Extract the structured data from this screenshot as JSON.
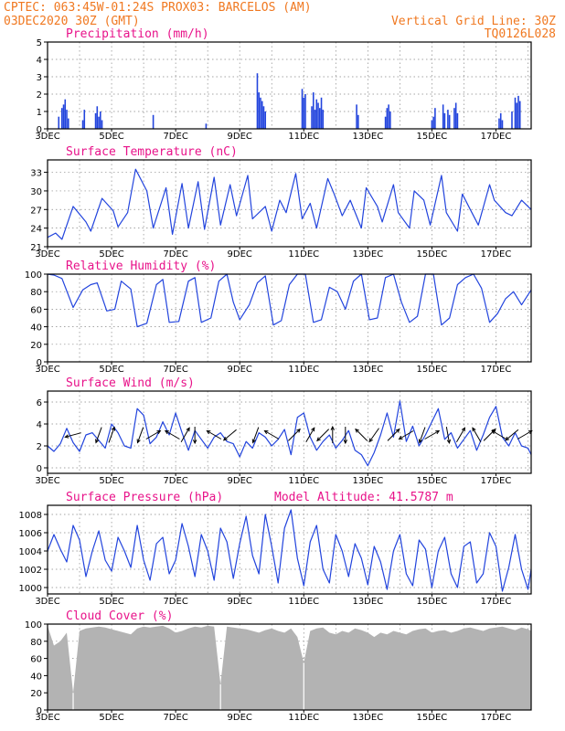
{
  "header": {
    "line1": "CPTEC:   063:45W-01:24S   PROX03: BARCELOS (AM)",
    "line2_left": "03DEC2020 30Z (GMT)",
    "line2_right": "Vertical Grid Line: 30Z",
    "line3_right": "TQ0126L028"
  },
  "colors": {
    "header": "#f07820",
    "title": "#e8138a",
    "series": "#2244dd",
    "bars": "#2244dd",
    "cloud": "#b3b3b3"
  },
  "chart_data": [
    {
      "type": "bar",
      "title": "Precipitation (mm/h)",
      "ylim": [
        0,
        5
      ],
      "yticks": [
        0,
        1,
        2,
        3,
        4,
        5
      ],
      "xticks": [
        "3DEC",
        "5DEC",
        "7DEC",
        "9DEC",
        "11DEC",
        "13DEC",
        "15DEC",
        "17DEC"
      ],
      "x_range_days": [
        3,
        18.1
      ],
      "bars": [
        [
          3.35,
          0.7
        ],
        [
          3.45,
          1.2
        ],
        [
          3.5,
          1.4
        ],
        [
          3.55,
          1.7
        ],
        [
          3.6,
          1.1
        ],
        [
          3.65,
          0.6
        ],
        [
          4.1,
          0.5
        ],
        [
          4.15,
          1.1
        ],
        [
          4.5,
          0.9
        ],
        [
          4.55,
          1.3
        ],
        [
          4.6,
          0.7
        ],
        [
          4.65,
          1.0
        ],
        [
          4.7,
          0.5
        ],
        [
          6.3,
          0.8
        ],
        [
          7.95,
          0.3
        ],
        [
          9.55,
          3.2
        ],
        [
          9.6,
          2.1
        ],
        [
          9.65,
          1.8
        ],
        [
          9.7,
          1.6
        ],
        [
          9.75,
          1.3
        ],
        [
          9.8,
          1.0
        ],
        [
          10.95,
          2.3
        ],
        [
          11.0,
          1.8
        ],
        [
          11.05,
          2.0
        ],
        [
          11.25,
          1.3
        ],
        [
          11.3,
          2.1
        ],
        [
          11.35,
          1.1
        ],
        [
          11.4,
          1.7
        ],
        [
          11.45,
          1.5
        ],
        [
          11.5,
          1.2
        ],
        [
          11.55,
          1.8
        ],
        [
          11.6,
          1.1
        ],
        [
          12.65,
          1.4
        ],
        [
          12.7,
          0.8
        ],
        [
          13.55,
          0.7
        ],
        [
          13.6,
          1.2
        ],
        [
          13.65,
          1.4
        ],
        [
          13.7,
          1.0
        ],
        [
          15.0,
          0.5
        ],
        [
          15.05,
          0.7
        ],
        [
          15.1,
          1.2
        ],
        [
          15.35,
          1.4
        ],
        [
          15.4,
          0.9
        ],
        [
          15.5,
          1.1
        ],
        [
          15.55,
          0.8
        ],
        [
          15.7,
          1.2
        ],
        [
          15.75,
          1.5
        ],
        [
          15.8,
          0.9
        ],
        [
          17.1,
          0.6
        ],
        [
          17.15,
          0.9
        ],
        [
          17.2,
          0.5
        ],
        [
          17.5,
          1.0
        ],
        [
          17.6,
          1.8
        ],
        [
          17.65,
          1.5
        ],
        [
          17.7,
          1.9
        ],
        [
          17.75,
          1.6
        ]
      ]
    },
    {
      "type": "line",
      "title": "Surface Temperature (nC)",
      "ylim": [
        21,
        35
      ],
      "yticks": [
        21,
        24,
        27,
        30,
        33
      ],
      "xticks": [
        "3DEC",
        "5DEC",
        "7DEC",
        "9DEC",
        "11DEC",
        "13DEC",
        "15DEC",
        "17DEC"
      ],
      "x": [
        3.0,
        3.25,
        3.45,
        3.8,
        4.2,
        4.35,
        4.7,
        5.05,
        5.2,
        5.5,
        5.75,
        6.1,
        6.3,
        6.7,
        6.9,
        7.2,
        7.4,
        7.7,
        7.9,
        8.2,
        8.4,
        8.7,
        8.9,
        9.25,
        9.4,
        9.8,
        10.0,
        10.25,
        10.45,
        10.75,
        10.95,
        11.2,
        11.4,
        11.75,
        11.95,
        12.2,
        12.45,
        12.8,
        12.95,
        13.3,
        13.45,
        13.8,
        13.95,
        14.3,
        14.45,
        14.75,
        14.95,
        15.3,
        15.45,
        15.8,
        15.95,
        16.2,
        16.45,
        16.8,
        16.95,
        17.3,
        17.5,
        17.8,
        18.1
      ],
      "y": [
        22.5,
        23.2,
        22.2,
        27.5,
        25.0,
        23.5,
        28.8,
        26.8,
        24.2,
        26.5,
        33.5,
        30.0,
        24.0,
        30.5,
        23.0,
        31.2,
        24.0,
        31.5,
        23.8,
        32.2,
        24.5,
        31.0,
        26.0,
        32.5,
        25.5,
        27.5,
        23.5,
        28.5,
        26.5,
        32.8,
        25.5,
        28.0,
        24.0,
        32.0,
        29.5,
        26.0,
        28.5,
        24.0,
        30.5,
        27.5,
        25.0,
        31.0,
        26.5,
        24.0,
        30.0,
        28.5,
        24.5,
        32.5,
        26.5,
        23.5,
        29.5,
        27.0,
        24.5,
        31.0,
        28.5,
        26.5,
        26.0,
        28.5,
        27.0
      ]
    },
    {
      "type": "line",
      "title": "Relative Humidity (%)",
      "ylim": [
        0,
        100
      ],
      "yticks": [
        0,
        20,
        40,
        60,
        80,
        100
      ],
      "xticks": [
        "3DEC",
        "5DEC",
        "7DEC",
        "9DEC",
        "11DEC",
        "13DEC",
        "15DEC",
        "17DEC"
      ],
      "x": [
        3.0,
        3.2,
        3.45,
        3.8,
        4.1,
        4.35,
        4.55,
        4.85,
        5.1,
        5.3,
        5.6,
        5.8,
        6.1,
        6.4,
        6.6,
        6.8,
        7.1,
        7.4,
        7.6,
        7.8,
        8.1,
        8.35,
        8.6,
        8.8,
        9.0,
        9.3,
        9.55,
        9.8,
        10.05,
        10.3,
        10.55,
        10.8,
        11.05,
        11.3,
        11.55,
        11.8,
        12.05,
        12.3,
        12.55,
        12.8,
        13.05,
        13.3,
        13.55,
        13.8,
        14.05,
        14.3,
        14.55,
        14.8,
        15.05,
        15.3,
        15.55,
        15.8,
        16.05,
        16.3,
        16.55,
        16.8,
        17.05,
        17.3,
        17.55,
        17.8,
        18.1
      ],
      "y": [
        100,
        99,
        95,
        62,
        82,
        88,
        90,
        58,
        60,
        92,
        83,
        40,
        44,
        88,
        94,
        45,
        46,
        92,
        96,
        45,
        50,
        92,
        100,
        68,
        48,
        65,
        90,
        98,
        42,
        47,
        88,
        100,
        100,
        45,
        48,
        85,
        80,
        60,
        92,
        100,
        48,
        50,
        96,
        100,
        68,
        45,
        52,
        100,
        100,
        42,
        50,
        88,
        96,
        100,
        84,
        45,
        55,
        72,
        80,
        65,
        82
      ]
    },
    {
      "type": "line",
      "title": "Surface Wind (m/s)",
      "ylim": [
        -0.5,
        7
      ],
      "yticks": [
        0,
        2,
        4,
        6
      ],
      "xticks": [
        "3DEC",
        "5DEC",
        "7DEC",
        "9DEC",
        "11DEC",
        "13DEC",
        "15DEC",
        "17DEC"
      ],
      "x": [
        3.0,
        3.2,
        3.4,
        3.6,
        3.8,
        4.0,
        4.2,
        4.4,
        4.6,
        4.8,
        5.0,
        5.2,
        5.4,
        5.6,
        5.8,
        6.0,
        6.2,
        6.4,
        6.6,
        6.8,
        7.0,
        7.2,
        7.4,
        7.6,
        7.8,
        8.0,
        8.2,
        8.4,
        8.6,
        8.8,
        9.0,
        9.2,
        9.4,
        9.6,
        9.8,
        10.0,
        10.2,
        10.4,
        10.6,
        10.8,
        11.0,
        11.2,
        11.4,
        11.6,
        11.8,
        12.0,
        12.2,
        12.4,
        12.6,
        12.8,
        13.0,
        13.2,
        13.4,
        13.6,
        13.8,
        14.0,
        14.2,
        14.4,
        14.6,
        14.8,
        15.0,
        15.2,
        15.4,
        15.6,
        15.8,
        16.0,
        16.2,
        16.4,
        16.6,
        16.8,
        17.0,
        17.2,
        17.4,
        17.6,
        17.8,
        18.0,
        18.1
      ],
      "y": [
        2.0,
        1.5,
        2.2,
        3.6,
        2.3,
        1.5,
        3.0,
        3.2,
        2.5,
        1.8,
        4.0,
        3.2,
        2.0,
        1.8,
        5.4,
        4.8,
        2.2,
        2.8,
        4.2,
        3.0,
        5.0,
        3.2,
        1.6,
        3.4,
        2.6,
        1.8,
        2.8,
        3.2,
        2.4,
        2.2,
        1.0,
        2.4,
        1.8,
        3.2,
        2.8,
        2.0,
        2.6,
        3.5,
        1.2,
        4.6,
        5.0,
        2.8,
        1.6,
        2.4,
        3.0,
        1.8,
        2.5,
        3.4,
        1.6,
        1.2,
        0.2,
        1.4,
        3.0,
        5.0,
        2.8,
        6.1,
        2.4,
        3.8,
        2.0,
        3.0,
        4.2,
        5.4,
        2.6,
        3.2,
        1.8,
        2.6,
        3.4,
        1.6,
        3.0,
        4.6,
        5.6,
        2.8,
        2.0,
        3.2,
        2.0,
        1.8,
        1.2
      ],
      "arrows": [
        [
          3.8,
          255
        ],
        [
          4.6,
          200
        ],
        [
          5.0,
          20
        ],
        [
          5.9,
          200
        ],
        [
          6.3,
          60
        ],
        [
          6.9,
          300
        ],
        [
          7.3,
          30
        ],
        [
          7.6,
          180
        ],
        [
          8.2,
          300
        ],
        [
          8.7,
          230
        ],
        [
          9.5,
          200
        ],
        [
          10.0,
          300
        ],
        [
          10.7,
          45
        ],
        [
          11.2,
          30
        ],
        [
          11.6,
          225
        ],
        [
          11.9,
          0
        ],
        [
          12.3,
          180
        ],
        [
          12.8,
          315
        ],
        [
          13.2,
          215
        ],
        [
          13.8,
          45
        ],
        [
          14.2,
          240
        ],
        [
          14.7,
          200
        ],
        [
          15.0,
          60
        ],
        [
          15.5,
          170
        ],
        [
          15.9,
          30
        ],
        [
          16.4,
          330
        ],
        [
          16.8,
          45
        ],
        [
          17.1,
          300
        ],
        [
          17.5,
          230
        ],
        [
          17.9,
          60
        ]
      ]
    },
    {
      "type": "line",
      "title": "Surface Pressure (hPa)",
      "subtitle": "Model Altitude: 41.5787 m",
      "ylim": [
        999.3,
        1009.0
      ],
      "yticks": [
        1000,
        1002,
        1004,
        1006,
        1008
      ],
      "xticks": [
        "3DEC",
        "5DEC",
        "7DEC",
        "9DEC",
        "11DEC",
        "13DEC",
        "15DEC",
        "17DEC"
      ],
      "x": [
        3.0,
        3.2,
        3.4,
        3.6,
        3.8,
        4.0,
        4.2,
        4.4,
        4.6,
        4.8,
        5.0,
        5.2,
        5.4,
        5.6,
        5.8,
        6.0,
        6.2,
        6.4,
        6.6,
        6.8,
        7.0,
        7.2,
        7.4,
        7.6,
        7.8,
        8.0,
        8.2,
        8.4,
        8.6,
        8.8,
        9.0,
        9.2,
        9.4,
        9.6,
        9.8,
        10.0,
        10.2,
        10.4,
        10.6,
        10.8,
        11.0,
        11.2,
        11.4,
        11.6,
        11.8,
        12.0,
        12.2,
        12.4,
        12.6,
        12.8,
        13.0,
        13.2,
        13.4,
        13.6,
        13.8,
        14.0,
        14.2,
        14.4,
        14.6,
        14.8,
        15.0,
        15.2,
        15.4,
        15.6,
        15.8,
        16.0,
        16.2,
        16.4,
        16.6,
        16.8,
        17.0,
        17.2,
        17.4,
        17.6,
        17.8,
        18.0,
        18.1
      ],
      "y": [
        1004.0,
        1005.8,
        1004.2,
        1002.8,
        1006.8,
        1005.2,
        1001.2,
        1004.0,
        1006.2,
        1003.0,
        1001.8,
        1005.5,
        1004.0,
        1002.2,
        1006.8,
        1003.0,
        1000.8,
        1004.8,
        1005.5,
        1001.5,
        1003.0,
        1007.0,
        1004.5,
        1001.2,
        1005.8,
        1004.0,
        1000.8,
        1006.5,
        1005.0,
        1001.0,
        1004.8,
        1007.8,
        1003.5,
        1001.5,
        1008.0,
        1004.5,
        1000.5,
        1006.5,
        1008.5,
        1003.2,
        1000.2,
        1005.0,
        1006.8,
        1002.0,
        1000.5,
        1005.8,
        1004.0,
        1001.2,
        1004.8,
        1003.2,
        1000.3,
        1004.5,
        1002.8,
        999.8,
        1004.0,
        1005.8,
        1001.5,
        1000.2,
        1005.2,
        1004.2,
        1000.0,
        1004.0,
        1005.5,
        1001.5,
        1000.0,
        1004.5,
        1005.0,
        1000.5,
        1001.5,
        1006.0,
        1004.5,
        999.6,
        1002.2,
        1005.8,
        1002.0,
        999.8,
        1002.0
      ]
    },
    {
      "type": "area",
      "title": "Cloud Cover (%)",
      "ylim": [
        0,
        100
      ],
      "yticks": [
        0,
        20,
        40,
        60,
        80,
        100
      ],
      "xticks": [
        "3DEC",
        "5DEC",
        "7DEC",
        "9DEC",
        "11DEC",
        "13DEC",
        "15DEC",
        "17DEC"
      ],
      "x": [
        3.0,
        3.2,
        3.4,
        3.6,
        3.8,
        4.0,
        4.2,
        4.4,
        4.6,
        4.8,
        5.0,
        5.2,
        5.4,
        5.6,
        5.8,
        6.0,
        6.2,
        6.4,
        6.6,
        6.8,
        7.0,
        7.2,
        7.4,
        7.6,
        7.8,
        8.0,
        8.2,
        8.4,
        8.6,
        8.8,
        9.0,
        9.2,
        9.4,
        9.6,
        9.8,
        10.0,
        10.2,
        10.4,
        10.6,
        10.8,
        11.0,
        11.2,
        11.4,
        11.6,
        11.8,
        12.0,
        12.2,
        12.4,
        12.6,
        12.8,
        13.0,
        13.2,
        13.4,
        13.6,
        13.8,
        14.0,
        14.2,
        14.4,
        14.6,
        14.8,
        15.0,
        15.2,
        15.4,
        15.6,
        15.8,
        16.0,
        16.2,
        16.4,
        16.6,
        16.8,
        17.0,
        17.2,
        17.4,
        17.6,
        17.8,
        18.0,
        18.1
      ],
      "y": [
        98,
        75,
        80,
        90,
        20,
        92,
        95,
        96,
        97,
        96,
        94,
        92,
        90,
        88,
        95,
        97,
        96,
        97,
        98,
        95,
        90,
        92,
        95,
        97,
        96,
        98,
        97,
        30,
        97,
        96,
        95,
        94,
        92,
        90,
        93,
        95,
        92,
        90,
        95,
        85,
        55,
        92,
        95,
        96,
        90,
        88,
        92,
        90,
        95,
        93,
        90,
        85,
        90,
        88,
        92,
        90,
        88,
        92,
        94,
        95,
        90,
        92,
        93,
        90,
        92,
        95,
        96,
        94,
        92,
        95,
        96,
        97,
        95,
        93,
        96,
        94,
        92
      ]
    }
  ]
}
